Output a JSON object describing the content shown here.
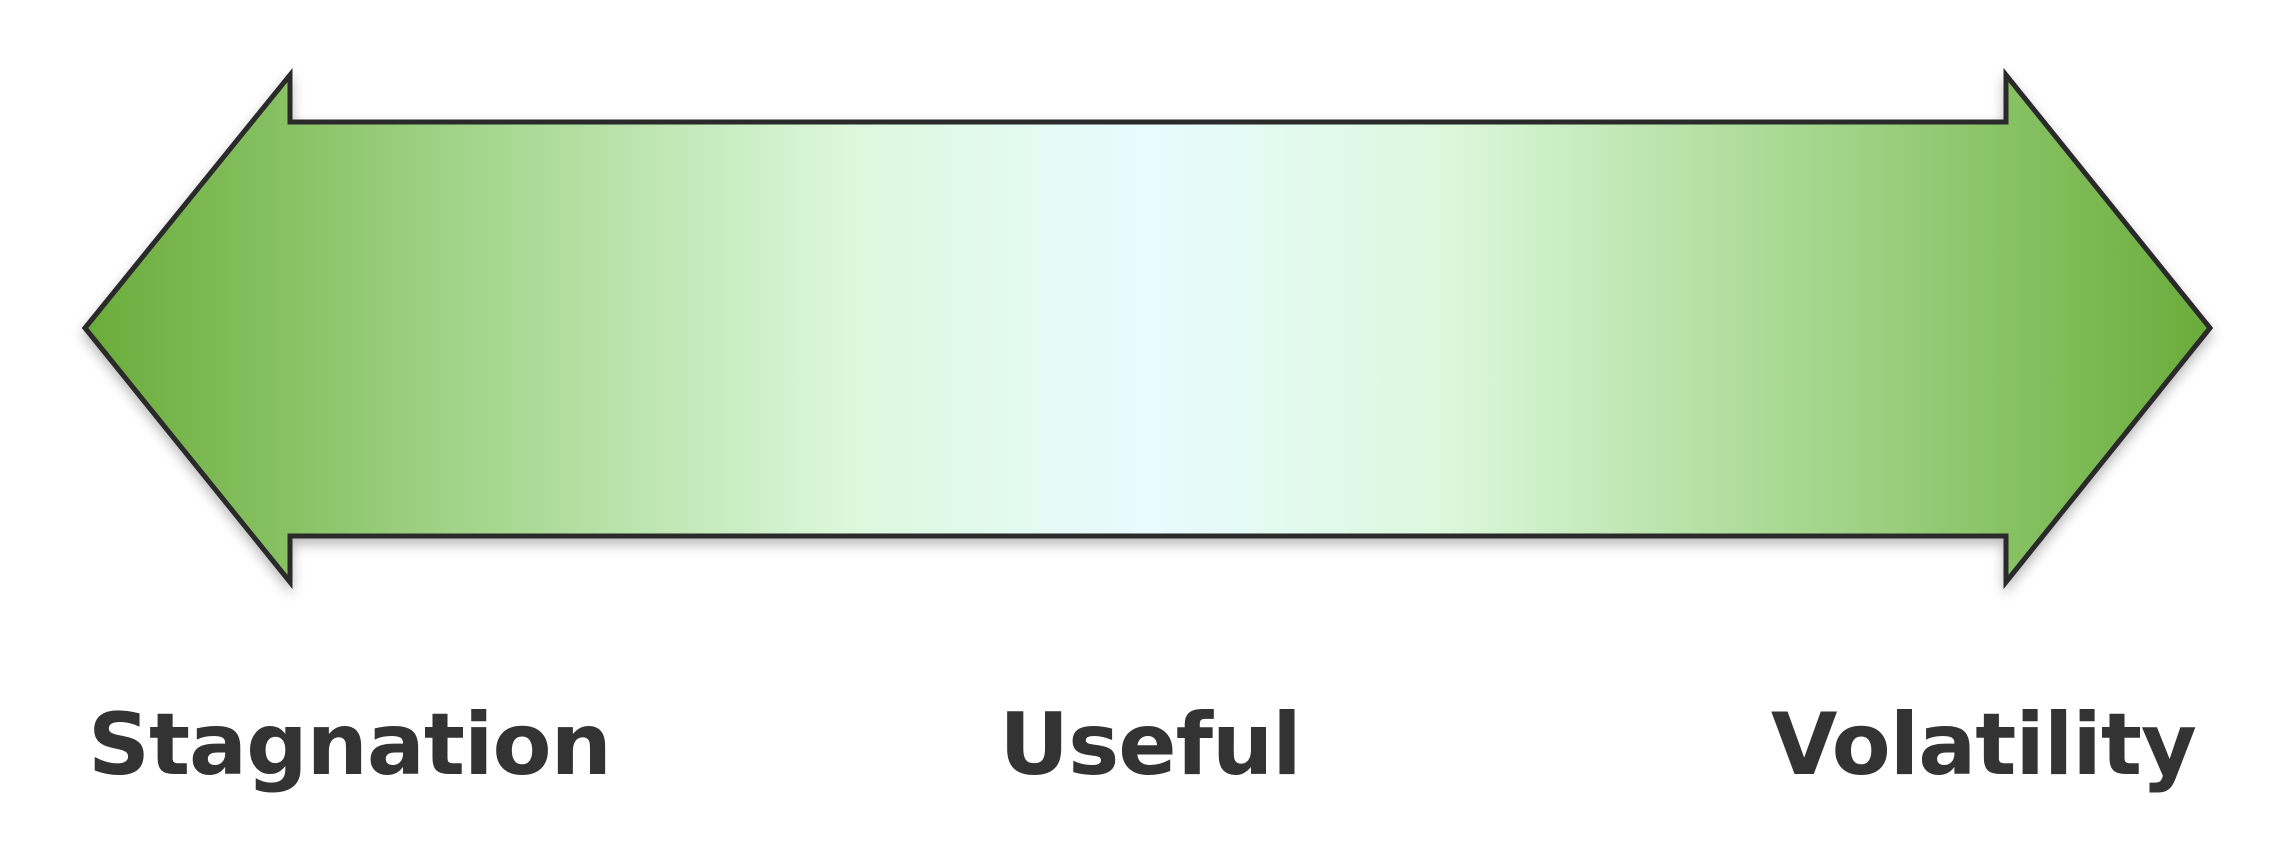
{
  "diagram": {
    "labels": {
      "left": "Stagnation",
      "center": "Useful",
      "right": "Volatility"
    },
    "colors": {
      "arrow_edge": "#6aac3a",
      "arrow_center": "#e8fbff",
      "arrow_mid": "#dcf8dc",
      "outline": "#2b2b2b",
      "label": "#333333"
    }
  }
}
